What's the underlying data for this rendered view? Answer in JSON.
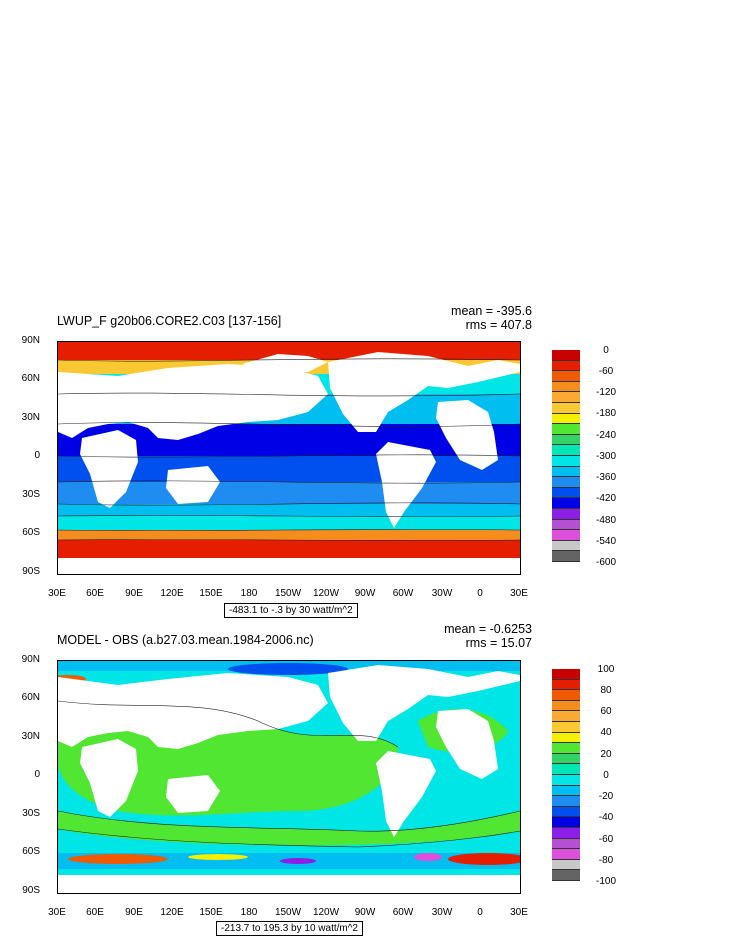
{
  "panels": [
    {
      "title": "LWUP_F g20b06.CORE2.C03 [137-156]",
      "mean": "mean = -395.6",
      "rms": "rms = 407.8",
      "range": "-483.1 to -.3 by 30 watt/m^2",
      "lat_labels": [
        "90N",
        "60N",
        "30N",
        "0",
        "30S",
        "60S",
        "90S"
      ],
      "lon_labels": [
        "30E",
        "60E",
        "90E",
        "120E",
        "150E",
        "180",
        "150W",
        "120W",
        "90W",
        "60W",
        "30W",
        "0",
        "30E"
      ],
      "colorbar_labels": [
        "0",
        "-60",
        "-120",
        "-180",
        "-240",
        "-300",
        "-360",
        "-420",
        "-480",
        "-540",
        "-600"
      ],
      "colorbar_colors": [
        "#c80000",
        "#e61e00",
        "#f05a00",
        "#f58c1e",
        "#faaa32",
        "#fac832",
        "#f5f000",
        "#50e632",
        "#32d264",
        "#00e6b4",
        "#00e6e6",
        "#00bef0",
        "#1e8cf0",
        "#0050f0",
        "#0000e6",
        "#8c1ee6",
        "#b450d2",
        "#dc50dc",
        "#c8c8c8",
        "#646464"
      ]
    },
    {
      "title": "MODEL - OBS (a.b27.03.mean.1984-2006.nc)",
      "mean": "mean = -0.6253",
      "rms": "rms = 15.07",
      "range": "-213.7 to 195.3 by 10 watt/m^2",
      "lat_labels": [
        "90N",
        "60N",
        "30N",
        "0",
        "30S",
        "60S",
        "90S"
      ],
      "lon_labels": [
        "30E",
        "60E",
        "90E",
        "120E",
        "150E",
        "180",
        "150W",
        "120W",
        "90W",
        "60W",
        "30W",
        "0",
        "30E"
      ],
      "colorbar_labels": [
        "100",
        "80",
        "60",
        "40",
        "20",
        "0",
        "-20",
        "-40",
        "-60",
        "-80",
        "-100"
      ],
      "colorbar_colors": [
        "#c80000",
        "#e61e00",
        "#f05a00",
        "#f58c1e",
        "#faaa32",
        "#fac832",
        "#f5f000",
        "#50e632",
        "#32d264",
        "#00e6b4",
        "#00e6e6",
        "#00bef0",
        "#1e8cf0",
        "#0050f0",
        "#0000e6",
        "#8c1ee6",
        "#b450d2",
        "#dc50dc",
        "#c8c8c8",
        "#646464"
      ]
    }
  ]
}
